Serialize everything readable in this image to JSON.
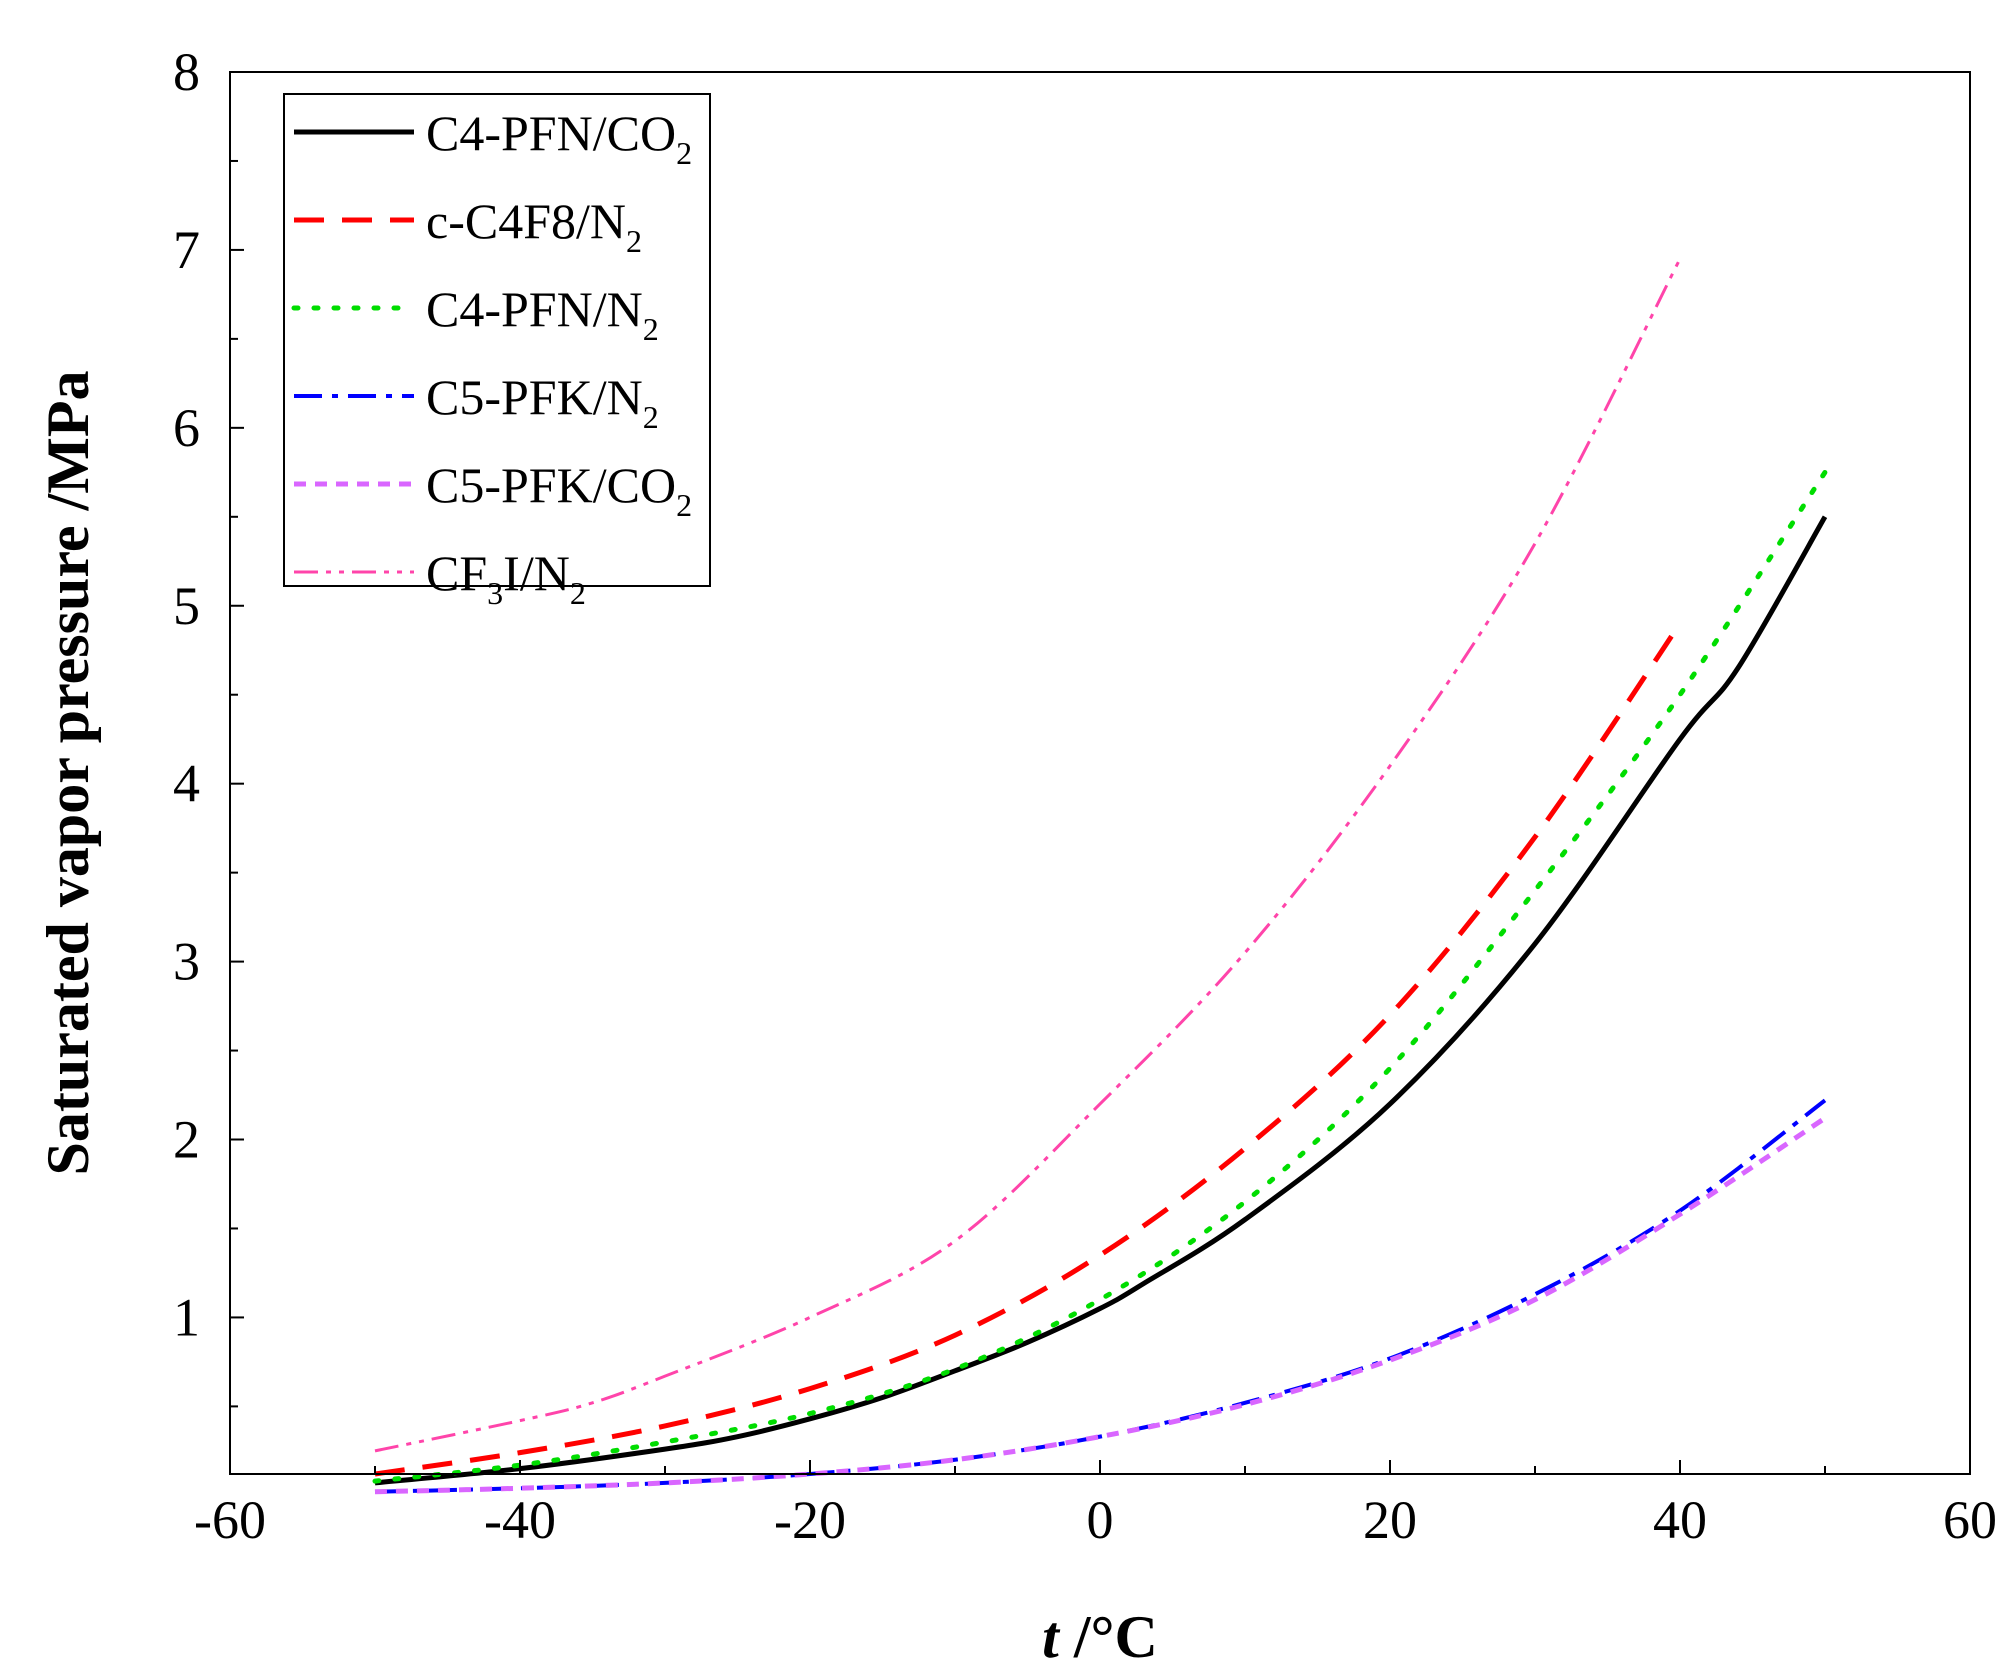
{
  "chart_data": {
    "type": "line",
    "title": "",
    "xlabel": {
      "var": "t",
      "unit": " /°C"
    },
    "ylabel": "Saturated vapor pressure /MPa",
    "xlim": [
      -60,
      60
    ],
    "ylim": [
      0.12,
      8
    ],
    "xticks": [
      -60,
      -40,
      -20,
      0,
      20,
      40,
      60
    ],
    "yticks": [
      1,
      2,
      3,
      4,
      5,
      6,
      7,
      8
    ],
    "grid": false,
    "legend_position": "top-left",
    "series": [
      {
        "name": "C4-PFN/CO2",
        "label": [
          "C4-PFN/CO",
          "2"
        ],
        "color": "#000000",
        "style": "solid",
        "x": [
          -50,
          -40,
          -30,
          -25,
          -20,
          -15,
          -10,
          -5,
          0,
          3,
          10,
          20,
          30,
          40,
          44,
          50
        ],
        "y": [
          0.07,
          0.15,
          0.26,
          0.33,
          0.43,
          0.55,
          0.7,
          0.86,
          1.05,
          1.19,
          1.55,
          2.2,
          3.1,
          4.25,
          4.65,
          5.5
        ]
      },
      {
        "name": "c-C4F8/N2",
        "label": [
          "c-C4F8/N",
          "2"
        ],
        "color": "#ff0000",
        "style": "dashed",
        "x": [
          -50,
          -40,
          -30,
          -20,
          -10,
          0,
          10,
          20,
          30,
          40
        ],
        "y": [
          0.12,
          0.24,
          0.39,
          0.6,
          0.9,
          1.35,
          1.95,
          2.7,
          3.7,
          4.9
        ]
      },
      {
        "name": "C4-PFN/N2",
        "label": [
          "C4-PFN/N",
          "2"
        ],
        "color": "#00dd00",
        "style": "dotted",
        "x": [
          -50,
          -40,
          -30,
          -20,
          -10,
          0,
          10,
          20,
          30,
          40,
          50
        ],
        "y": [
          0.08,
          0.17,
          0.3,
          0.46,
          0.71,
          1.1,
          1.65,
          2.4,
          3.4,
          4.5,
          5.75
        ]
      },
      {
        "name": "C5-PFK/N2",
        "label": [
          "C5-PFK/N",
          "2"
        ],
        "color": "#0000ff",
        "style": "dashdot",
        "x": [
          -50,
          -40,
          -30,
          -20,
          -10,
          0,
          10,
          20,
          30,
          40,
          50
        ],
        "y": [
          0.02,
          0.04,
          0.07,
          0.12,
          0.2,
          0.33,
          0.52,
          0.77,
          1.13,
          1.6,
          2.22
        ]
      },
      {
        "name": "C5-PFK/CO2",
        "label": [
          "C5-PFK/CO",
          "2"
        ],
        "color": "#d966ff",
        "style": "shortdash",
        "x": [
          -50,
          -40,
          -30,
          -20,
          -10,
          0,
          10,
          20,
          30,
          40,
          50
        ],
        "y": [
          0.02,
          0.04,
          0.07,
          0.12,
          0.2,
          0.33,
          0.51,
          0.76,
          1.1,
          1.58,
          2.12
        ]
      },
      {
        "name": "CF3I/N2",
        "label": [
          "CF",
          "3",
          "I/N",
          "2"
        ],
        "color": "#ff44aa",
        "style": "dashdotdot",
        "x": [
          -50,
          -40,
          -35,
          -30,
          -20,
          -10,
          0,
          10,
          20,
          30,
          40
        ],
        "y": [
          0.25,
          0.42,
          0.52,
          0.67,
          1.0,
          1.43,
          2.2,
          3.05,
          4.1,
          5.35,
          6.95
        ]
      }
    ]
  }
}
